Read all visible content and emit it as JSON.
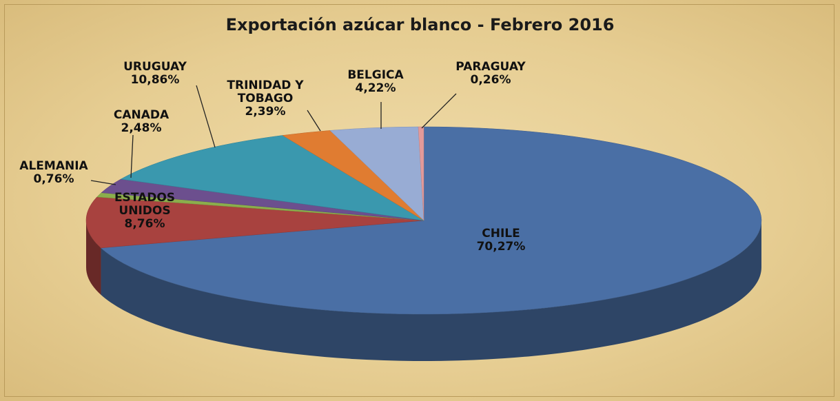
{
  "chart_data": {
    "type": "pie",
    "title": "Exportación azúcar blanco - Febrero 2016",
    "categories": [
      "CHILE",
      "ESTADOS UNIDOS",
      "ALEMANIA",
      "CANADA",
      "URUGUAY",
      "TRINIDAD Y TOBAGO",
      "BELGICA",
      "PARAGUAY"
    ],
    "values": [
      70.27,
      8.76,
      0.76,
      2.48,
      10.86,
      2.39,
      4.22,
      0.26
    ],
    "value_labels": [
      "70,27%",
      "8,76%",
      "0,76%",
      "2,48%",
      "10,86%",
      "2,39%",
      "4,22%",
      "0,26%"
    ],
    "colors": [
      "#4a6fa5",
      "#a8423f",
      "#8bae4c",
      "#6c4f8e",
      "#3a98ae",
      "#e07c31",
      "#98acd4",
      "#e39a9a"
    ]
  }
}
